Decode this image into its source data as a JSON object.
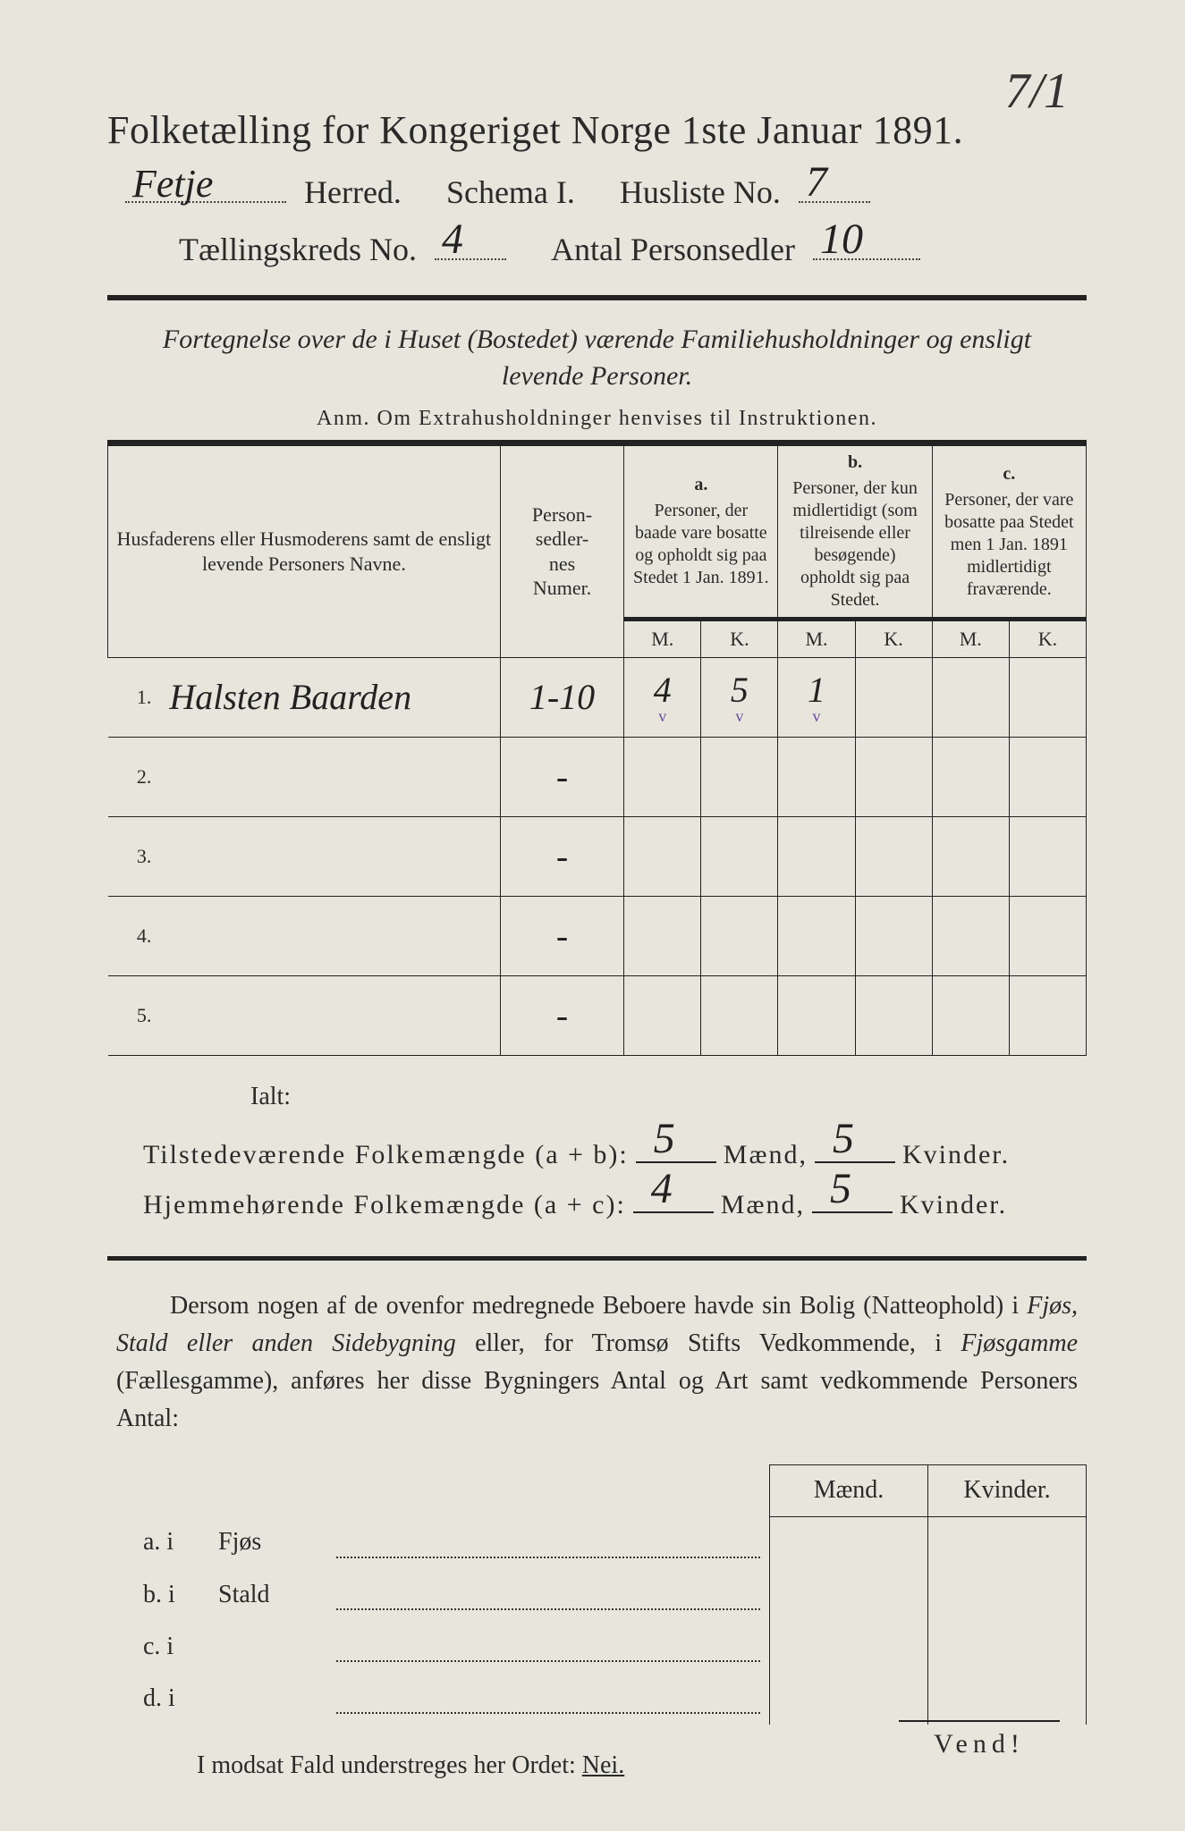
{
  "page": {
    "corner_mark": "7/1",
    "title": "Folketælling for Kongeriget Norge 1ste Januar 1891.",
    "line2": {
      "herred_value": "Fetje",
      "herred_label": "Herred.",
      "schema_label": "Schema I.",
      "husliste_label": "Husliste No.",
      "husliste_value": "7"
    },
    "line3": {
      "kreds_label": "Tællingskreds No.",
      "kreds_value": "4",
      "antal_label": "Antal Personsedler",
      "antal_value": "10"
    },
    "subtitle": "Fortegnelse over de i Huset (Bostedet) værende Familiehusholdninger og ensligt levende Personer.",
    "anm": "Anm. Om Extrahusholdninger henvises til Instruktionen."
  },
  "table": {
    "headers": {
      "name": "Husfaderens eller Husmoderens samt de ensligt levende Personers Navne.",
      "sedler": "Person-\nsedler-\nnes\nNumer.",
      "a_letter": "a.",
      "a": "Personer, der baade vare bosatte og opholdt sig paa Stedet 1 Jan. 1891.",
      "b_letter": "b.",
      "b": "Personer, der kun midlertidigt (som tilreisende eller besøgende) opholdt sig paa Stedet.",
      "c_letter": "c.",
      "c": "Personer, der vare bosatte paa Stedet men 1 Jan. 1891 midlertidigt fraværende.",
      "m": "M.",
      "k": "K."
    },
    "rows": [
      {
        "n": "1.",
        "name": "Halsten Baarden",
        "sedler": "1-10",
        "a_m": "4",
        "a_k": "5",
        "b_m": "1",
        "b_k": "",
        "c_m": "",
        "c_k": "",
        "checks": true
      },
      {
        "n": "2.",
        "name": "",
        "sedler": "-",
        "a_m": "",
        "a_k": "",
        "b_m": "",
        "b_k": "",
        "c_m": "",
        "c_k": ""
      },
      {
        "n": "3.",
        "name": "",
        "sedler": "-",
        "a_m": "",
        "a_k": "",
        "b_m": "",
        "b_k": "",
        "c_m": "",
        "c_k": ""
      },
      {
        "n": "4.",
        "name": "",
        "sedler": "-",
        "a_m": "",
        "a_k": "",
        "b_m": "",
        "b_k": "",
        "c_m": "",
        "c_k": ""
      },
      {
        "n": "5.",
        "name": "",
        "sedler": "-",
        "a_m": "",
        "a_k": "",
        "b_m": "",
        "b_k": "",
        "c_m": "",
        "c_k": ""
      }
    ]
  },
  "totals": {
    "ialt": "Ialt:",
    "present_label": "Tilstedeværende Folkemængde (a + b):",
    "resident_label": "Hjemmehørende Folkemængde (a + c):",
    "maend": "Mænd,",
    "kvinder": "Kvinder.",
    "present_m": "5",
    "present_k": "5",
    "resident_m": "4",
    "resident_k": "5"
  },
  "para": {
    "text1": "Dersom nogen af de ovenfor medregnede Beboere havde sin Bolig (Natteophold) i ",
    "em1": "Fjøs, Stald eller anden Sidebygning",
    "text2": " eller, for Tromsø Stifts Vedkommende, i ",
    "em2": "Fjøsgamme",
    "text3": " (Fællesgamme), anføres her disse Bygningers Antal og Art samt vedkommende Personers Antal:"
  },
  "byg": {
    "m": "Mænd.",
    "k": "Kvinder.",
    "rows": [
      {
        "lbl": "a.  i",
        "kind": "Fjøs"
      },
      {
        "lbl": "b.  i",
        "kind": "Stald"
      },
      {
        "lbl": "c.  i",
        "kind": ""
      },
      {
        "lbl": "d.  i",
        "kind": ""
      }
    ]
  },
  "nei": {
    "text": "I modsat Fald understreges her Ordet: ",
    "word": "Nei."
  },
  "vend": "Vend!"
}
